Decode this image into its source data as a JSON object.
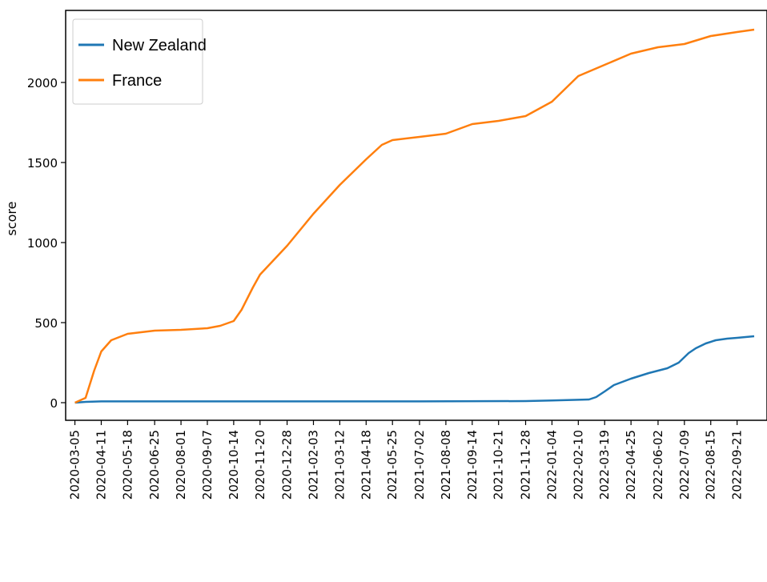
{
  "chart_data": {
    "type": "line",
    "title": "",
    "xlabel": "",
    "ylabel": "score",
    "ylim": [
      -110,
      2450
    ],
    "x_range": [
      "2020-02-21",
      "2022-11-02"
    ],
    "grid": false,
    "legend_placement": "top-left",
    "yticks": [
      0,
      500,
      1000,
      1500,
      2000
    ],
    "ytick_labels": [
      "0",
      "500",
      "1000",
      "1500",
      "2000"
    ],
    "xticks": [
      "2020-03-05",
      "2020-04-11",
      "2020-05-18",
      "2020-06-25",
      "2020-08-01",
      "2020-09-07",
      "2020-10-14",
      "2020-11-20",
      "2020-12-28",
      "2021-02-03",
      "2021-03-12",
      "2021-04-18",
      "2021-05-25",
      "2021-07-02",
      "2021-08-08",
      "2021-09-14",
      "2021-10-21",
      "2021-11-28",
      "2022-01-04",
      "2022-02-10",
      "2022-03-19",
      "2022-04-25",
      "2022-06-02",
      "2022-07-09",
      "2022-08-15",
      "2022-09-21"
    ],
    "series": [
      {
        "name": "New Zealand",
        "color": "#1f77b4",
        "points": [
          [
            "2020-03-05",
            0
          ],
          [
            "2020-03-20",
            5
          ],
          [
            "2020-04-11",
            8
          ],
          [
            "2020-06-25",
            8
          ],
          [
            "2020-12-28",
            8
          ],
          [
            "2021-07-02",
            8
          ],
          [
            "2021-11-28",
            10
          ],
          [
            "2022-01-04",
            14
          ],
          [
            "2022-02-10",
            18
          ],
          [
            "2022-02-25",
            20
          ],
          [
            "2022-03-07",
            35
          ],
          [
            "2022-03-19",
            70
          ],
          [
            "2022-04-01",
            110
          ],
          [
            "2022-04-25",
            150
          ],
          [
            "2022-05-20",
            185
          ],
          [
            "2022-06-15",
            215
          ],
          [
            "2022-07-01",
            250
          ],
          [
            "2022-07-15",
            310
          ],
          [
            "2022-07-25",
            340
          ],
          [
            "2022-08-08",
            370
          ],
          [
            "2022-08-22",
            390
          ],
          [
            "2022-09-07",
            400
          ],
          [
            "2022-09-21",
            405
          ],
          [
            "2022-10-15",
            415
          ]
        ]
      },
      {
        "name": "France",
        "color": "#ff7f0e",
        "points": [
          [
            "2020-03-05",
            0
          ],
          [
            "2020-03-20",
            30
          ],
          [
            "2020-04-01",
            200
          ],
          [
            "2020-04-11",
            320
          ],
          [
            "2020-04-25",
            390
          ],
          [
            "2020-05-18",
            430
          ],
          [
            "2020-06-25",
            450
          ],
          [
            "2020-08-01",
            455
          ],
          [
            "2020-09-07",
            465
          ],
          [
            "2020-09-25",
            480
          ],
          [
            "2020-10-14",
            510
          ],
          [
            "2020-10-25",
            580
          ],
          [
            "2020-11-10",
            720
          ],
          [
            "2020-11-20",
            800
          ],
          [
            "2020-12-28",
            980
          ],
          [
            "2021-02-03",
            1180
          ],
          [
            "2021-03-12",
            1360
          ],
          [
            "2021-04-18",
            1520
          ],
          [
            "2021-05-10",
            1610
          ],
          [
            "2021-05-25",
            1640
          ],
          [
            "2021-07-02",
            1660
          ],
          [
            "2021-08-08",
            1680
          ],
          [
            "2021-09-14",
            1740
          ],
          [
            "2021-10-21",
            1760
          ],
          [
            "2021-11-28",
            1790
          ],
          [
            "2022-01-04",
            1880
          ],
          [
            "2022-02-10",
            2040
          ],
          [
            "2022-03-19",
            2110
          ],
          [
            "2022-04-25",
            2180
          ],
          [
            "2022-06-02",
            2220
          ],
          [
            "2022-07-09",
            2240
          ],
          [
            "2022-08-15",
            2290
          ],
          [
            "2022-09-21",
            2315
          ],
          [
            "2022-10-15",
            2330
          ]
        ]
      }
    ]
  }
}
